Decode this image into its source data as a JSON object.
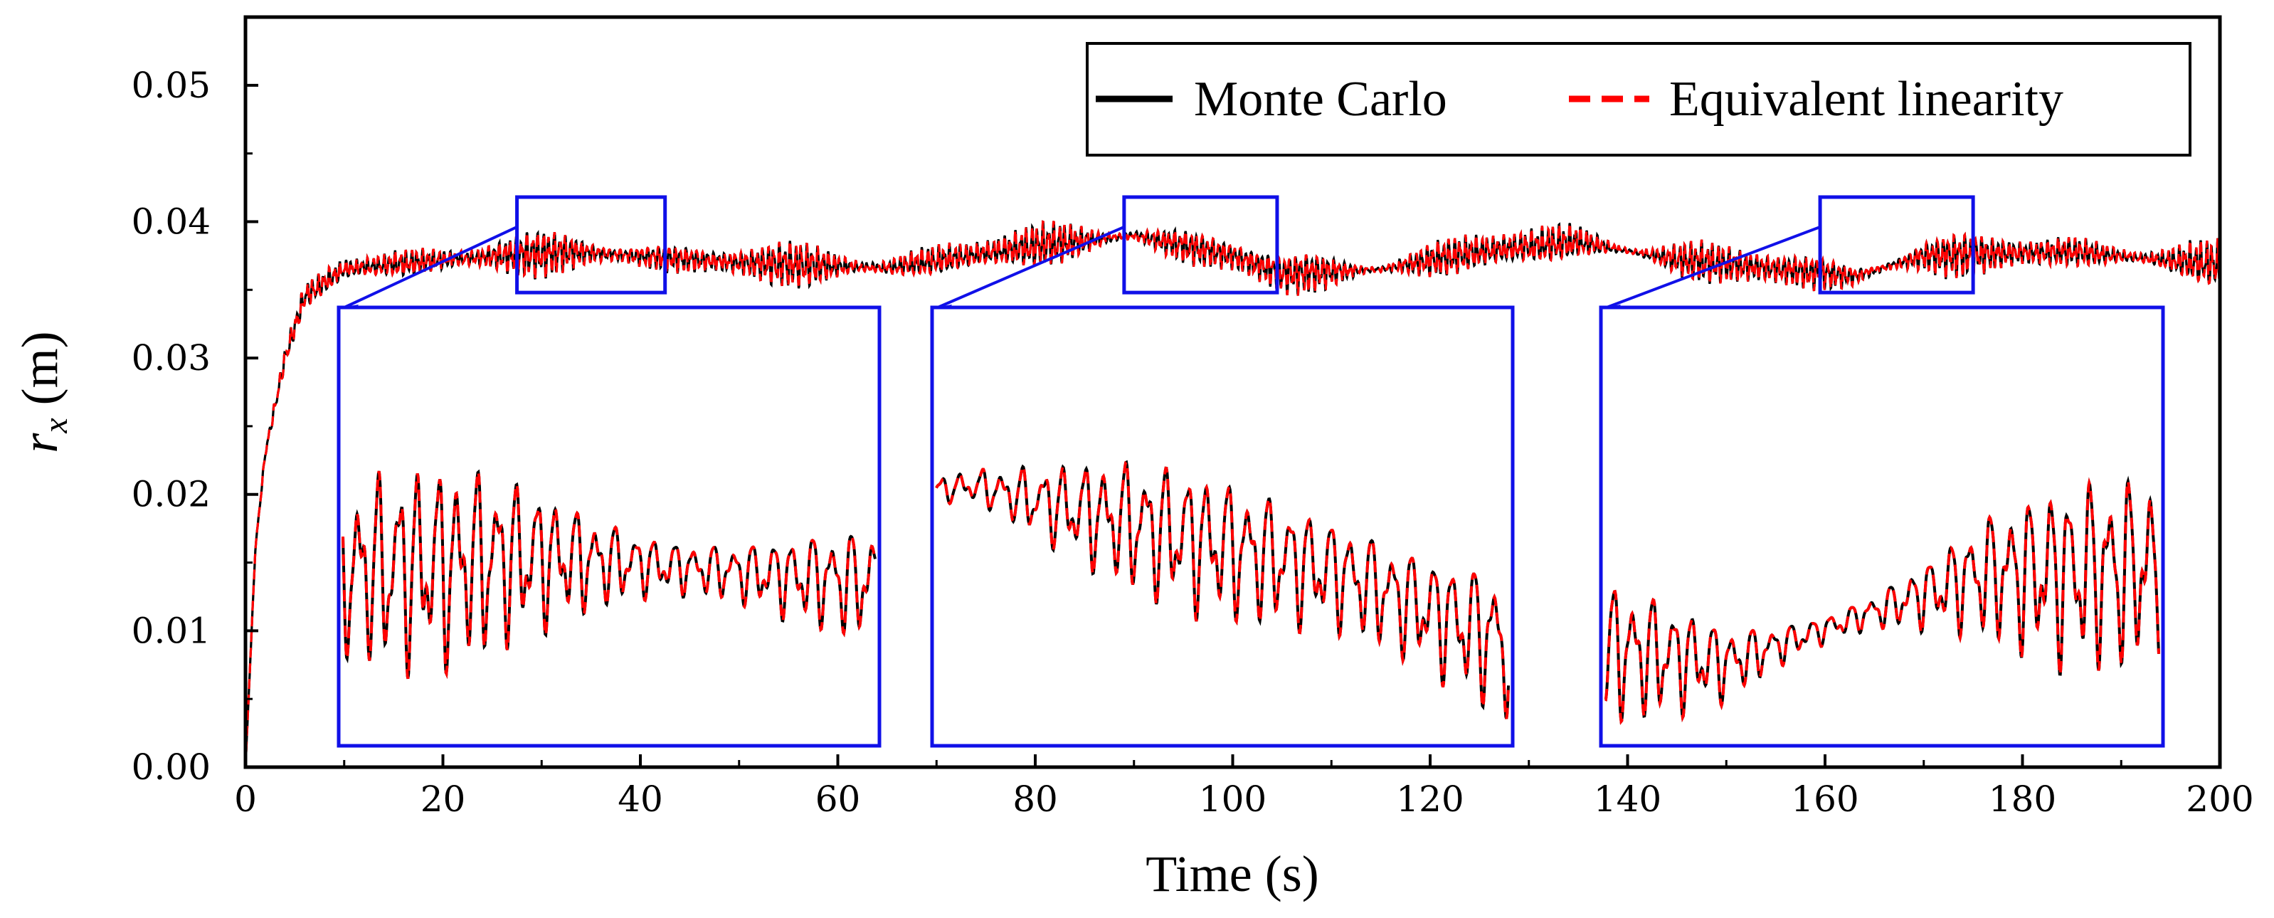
{
  "chart_data": {
    "type": "line",
    "title": "",
    "xlabel": "Time (s)",
    "ylabel_symbol": "r",
    "ylabel_subscript": "x",
    "ylabel_unit": "(m)",
    "xlim": [
      0,
      200
    ],
    "ylim": [
      0,
      0.055
    ],
    "x_ticks": [
      0,
      20,
      40,
      60,
      80,
      100,
      120,
      140,
      160,
      180,
      200
    ],
    "x_tick_labels": [
      "0",
      "20",
      "40",
      "60",
      "80",
      "100",
      "120",
      "140",
      "160",
      "180",
      "200"
    ],
    "y_ticks": [
      0,
      0.01,
      0.02,
      0.03,
      0.04,
      0.05
    ],
    "y_tick_labels": [
      "0.00",
      "0.01",
      "0.02",
      "0.03",
      "0.04",
      "0.05"
    ],
    "grid": false,
    "legend_position": "top-right",
    "series": [
      {
        "name": "Monte Carlo",
        "color": "#000000",
        "style": "solid"
      },
      {
        "name": "Equivalent linearity",
        "color": "#ff0000",
        "style": "dashed"
      }
    ],
    "signal_summary": {
      "rise_end_time": 10,
      "steady_mean": 0.0372,
      "oscillation_amplitude": 0.0012,
      "envelope_points": [
        {
          "t": 0,
          "v": 0.0
        },
        {
          "t": 1,
          "v": 0.016
        },
        {
          "t": 2,
          "v": 0.023
        },
        {
          "t": 4,
          "v": 0.03
        },
        {
          "t": 6,
          "v": 0.0345
        },
        {
          "t": 10,
          "v": 0.0365
        },
        {
          "t": 20,
          "v": 0.0372
        },
        {
          "t": 33,
          "v": 0.0378
        },
        {
          "t": 50,
          "v": 0.037
        },
        {
          "t": 65,
          "v": 0.0366
        },
        {
          "t": 80,
          "v": 0.0382
        },
        {
          "t": 90,
          "v": 0.039
        },
        {
          "t": 100,
          "v": 0.0375
        },
        {
          "t": 105,
          "v": 0.0362
        },
        {
          "t": 115,
          "v": 0.0365
        },
        {
          "t": 125,
          "v": 0.0378
        },
        {
          "t": 135,
          "v": 0.0385
        },
        {
          "t": 145,
          "v": 0.0372
        },
        {
          "t": 163,
          "v": 0.036
        },
        {
          "t": 170,
          "v": 0.0375
        },
        {
          "t": 185,
          "v": 0.0378
        },
        {
          "t": 200,
          "v": 0.0368
        }
      ]
    },
    "zoom_insets": [
      {
        "t_start": 27.5,
        "t_end": 42.5,
        "v_low": 0.0348,
        "v_high": 0.0418
      },
      {
        "t_start": 89.0,
        "t_end": 104.5,
        "v_low": 0.0348,
        "v_high": 0.0418
      },
      {
        "t_start": 159.5,
        "t_end": 175.0,
        "v_low": 0.0348,
        "v_high": 0.0418
      }
    ],
    "colors": {
      "zoom_box": "#1010e8"
    }
  }
}
